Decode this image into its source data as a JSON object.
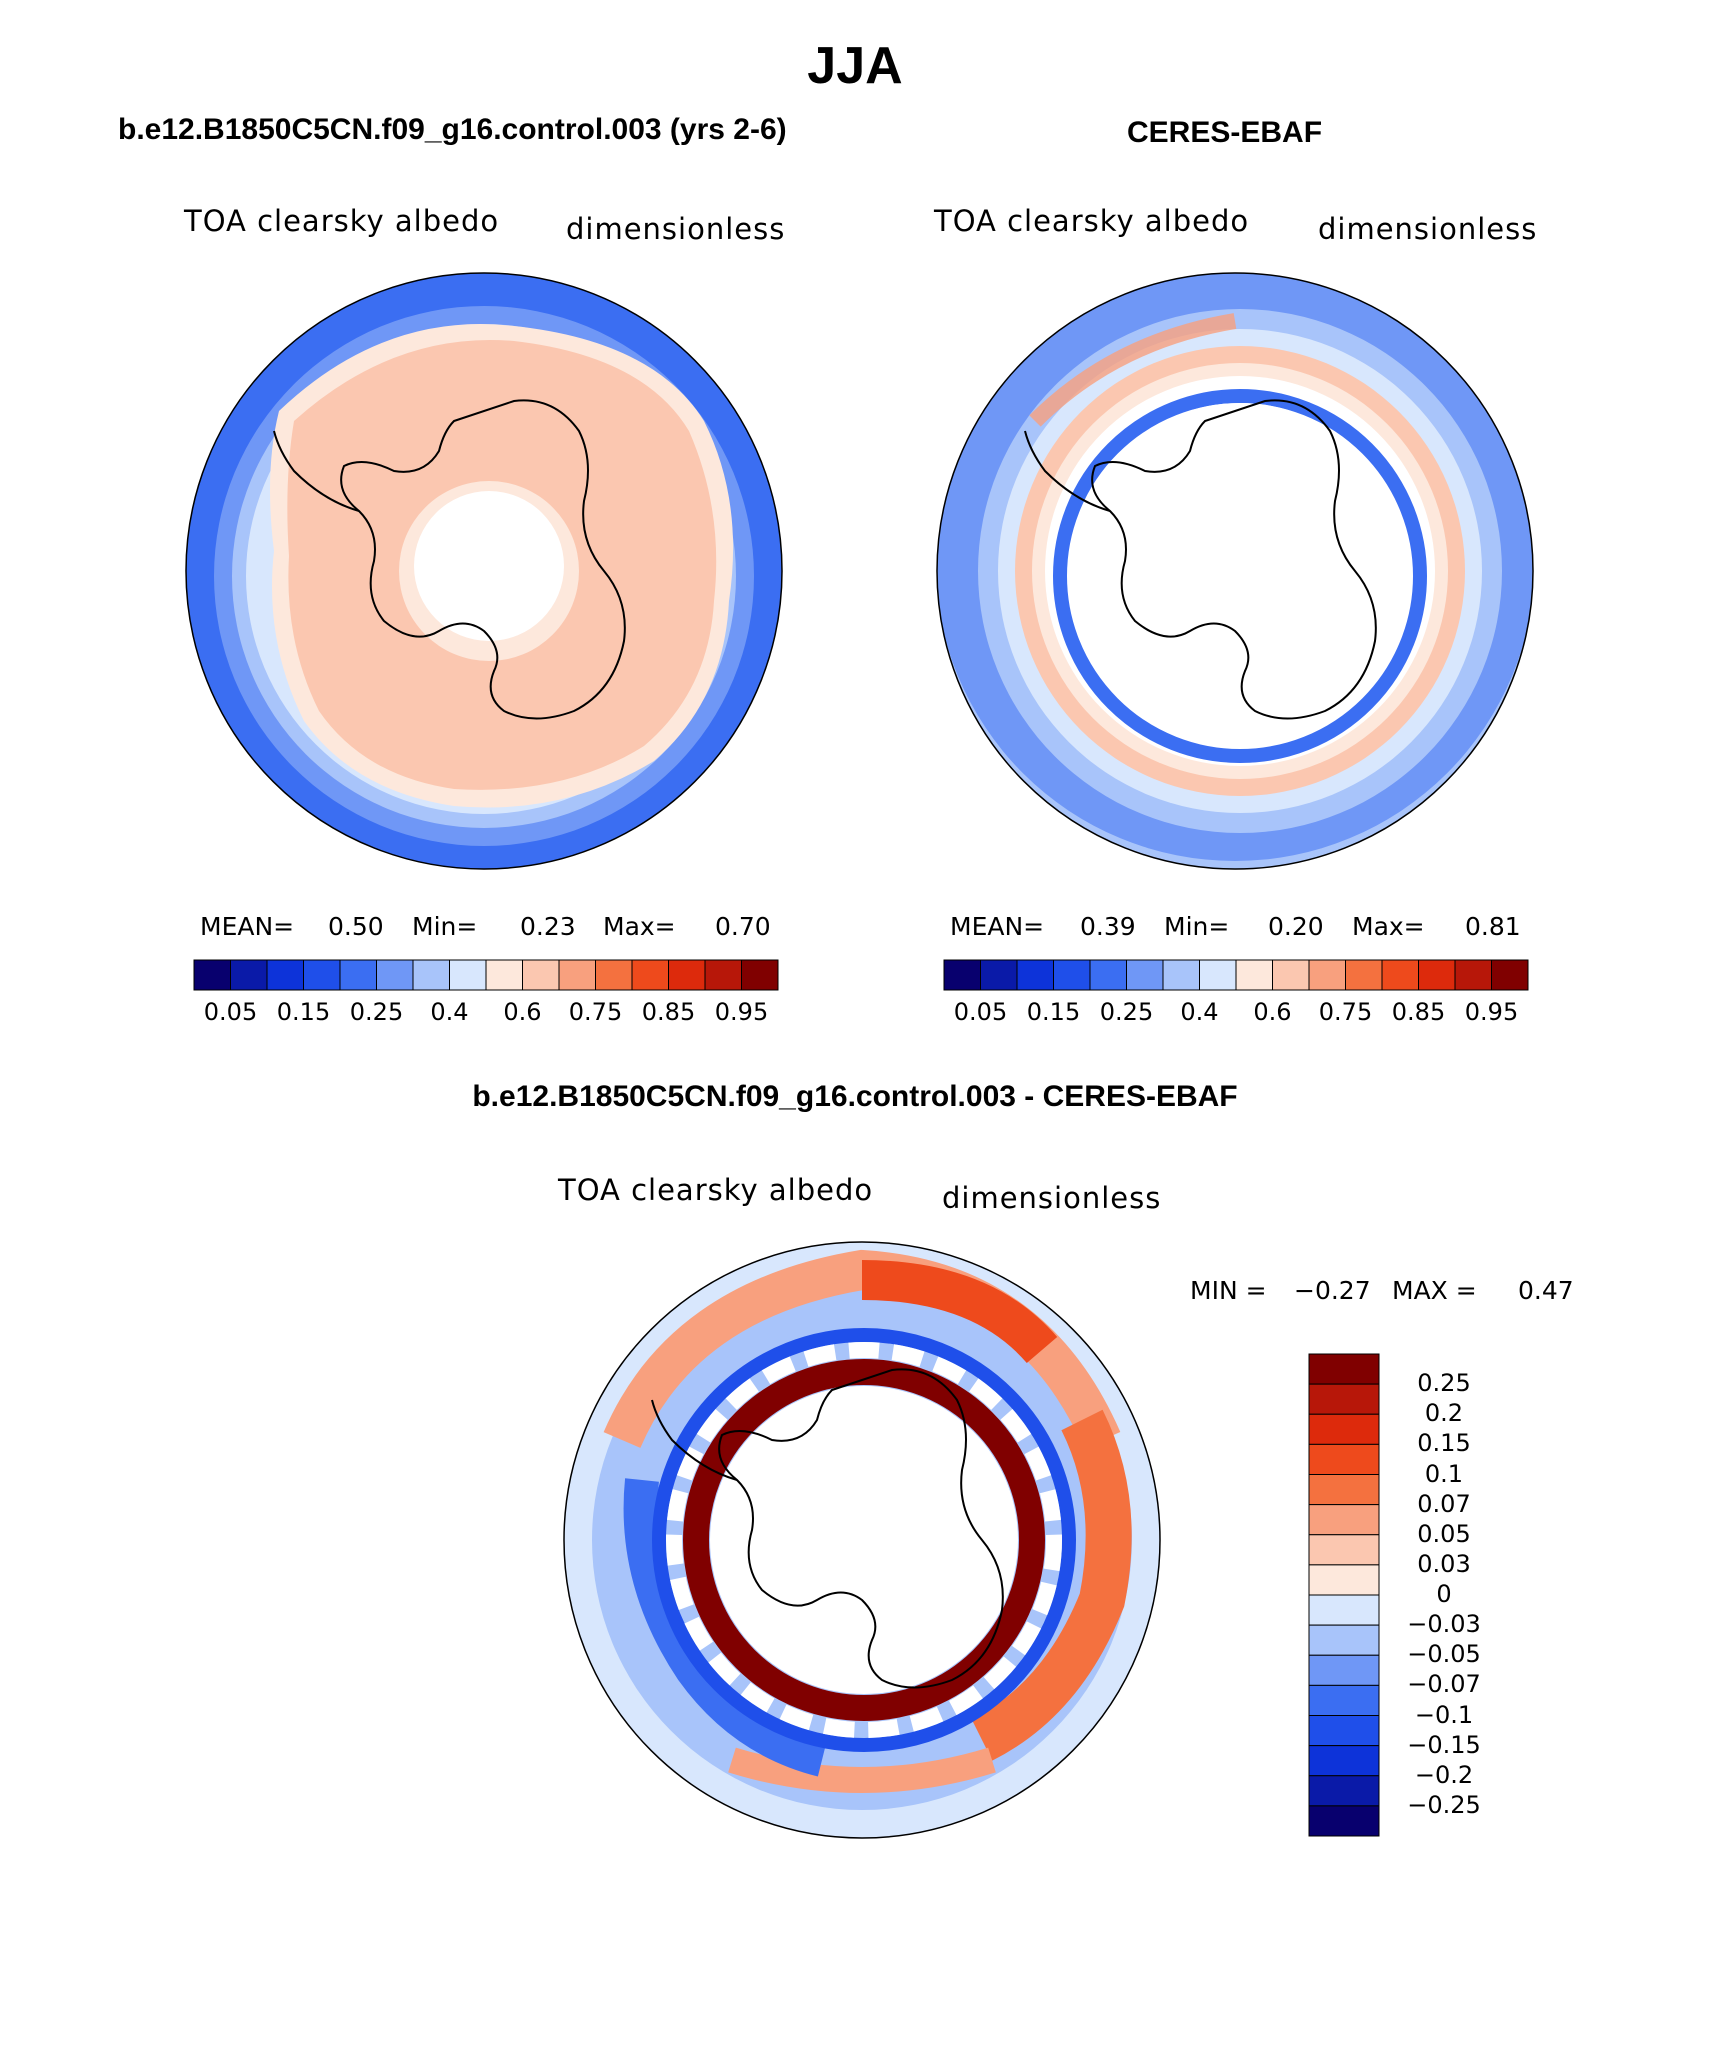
{
  "figure": {
    "season": "JJA",
    "colors": {
      "abs_scale": [
        "#08006e",
        "#0a1aa8",
        "#0d33d9",
        "#1f4fea",
        "#3b6ef2",
        "#6f97f6",
        "#a8c4fa",
        "#d8e7fd",
        "#fde8dc",
        "#fbc7b0",
        "#f8a07e",
        "#f4713f",
        "#ee4a1c",
        "#dd2a0c",
        "#b71709",
        "#800000"
      ],
      "diff_scale": [
        "#800000",
        "#b71709",
        "#dd2a0c",
        "#ee4a1c",
        "#f4713f",
        "#f8a07e",
        "#fbc7b0",
        "#fde8dc",
        "#d8e7fd",
        "#a8c4fa",
        "#6f97f6",
        "#3b6ef2",
        "#1f4fea",
        "#0d33d9",
        "#0a1aa8",
        "#08006e"
      ]
    }
  },
  "panel_model": {
    "title": "b.e12.B1850C5CN.f09_g16.control.003 (yrs 2-6)",
    "left_label": "TOA clearsky albedo",
    "right_label": "dimensionless",
    "stats": {
      "mean_label": "MEAN=",
      "mean": "0.50",
      "min_label": "Min=",
      "min": "0.23",
      "max_label": "Max=",
      "max": "0.70"
    },
    "ticks": [
      "0.05",
      "0.15",
      "0.25",
      "0.4",
      "0.6",
      "0.75",
      "0.85",
      "0.95"
    ]
  },
  "panel_obs": {
    "title": "CERES-EBAF",
    "left_label": "TOA clearsky albedo",
    "right_label": "dimensionless",
    "stats": {
      "mean_label": "MEAN=",
      "mean": "0.39",
      "min_label": "Min=",
      "min": "0.20",
      "max_label": "Max=",
      "max": "0.81"
    },
    "ticks": [
      "0.05",
      "0.15",
      "0.25",
      "0.4",
      "0.6",
      "0.75",
      "0.85",
      "0.95"
    ]
  },
  "panel_diff": {
    "title": "b.e12.B1850C5CN.f09_g16.control.003 - CERES-EBAF",
    "left_label": "TOA clearsky albedo",
    "right_label": "dimensionless",
    "stats": {
      "min_label": "MIN =",
      "min": "−0.27",
      "max_label": "MAX =",
      "max": "0.47"
    },
    "ticks": [
      "0.25",
      "0.2",
      "0.15",
      "0.1",
      "0.07",
      "0.05",
      "0.03",
      "0",
      "−0.03",
      "−0.05",
      "−0.07",
      "−0.1",
      "−0.15",
      "−0.2",
      "−0.25"
    ]
  }
}
